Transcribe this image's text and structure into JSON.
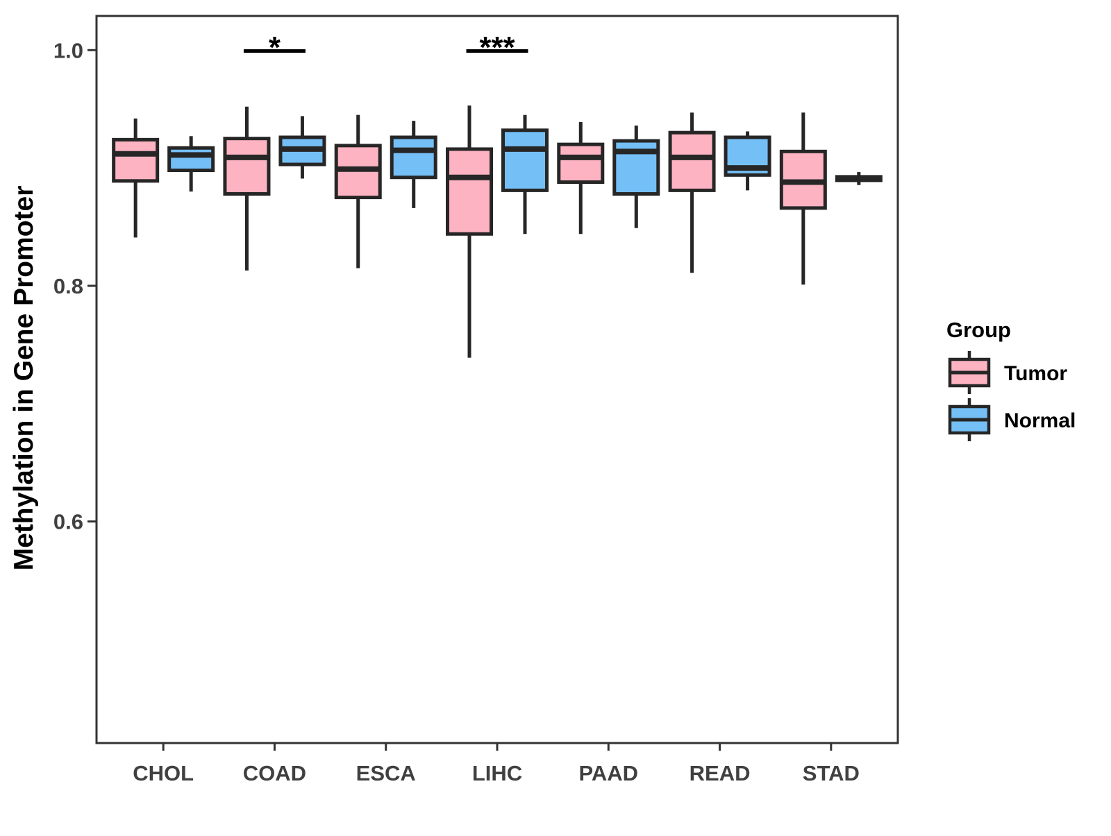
{
  "chart_data": {
    "type": "boxplot",
    "title": "",
    "xlabel": "",
    "ylabel": "Methylation in Gene Promoter",
    "categories": [
      "CHOL",
      "COAD",
      "ESCA",
      "LIHC",
      "PAAD",
      "READ",
      "STAD"
    ],
    "groups": [
      "Tumor",
      "Normal"
    ],
    "group_colors": {
      "Tumor": "#FDB3C2",
      "Normal": "#74BFF5"
    },
    "stroke_color": "#262626",
    "axis_text_color": "#404040",
    "panel_border_color": "#333333",
    "grid": false,
    "legend_position": "right",
    "ylim": [
      0.412,
      1.029
    ],
    "y_tick_values": [
      1.0,
      0.8,
      0.6
    ],
    "y_tick_labels": [
      "1.0",
      "0.8",
      "0.6"
    ],
    "legend": {
      "title": "Group",
      "entries": [
        {
          "label": "Tumor",
          "color": "#FDB3C2"
        },
        {
          "label": "Normal",
          "color": "#74BFF5"
        }
      ]
    },
    "significance": [
      {
        "category": "COAD",
        "label": "*"
      },
      {
        "category": "LIHC",
        "label": "***"
      }
    ],
    "series": [
      {
        "category": "CHOL",
        "group": "Tumor",
        "whisker_low": 0.841,
        "q1": 0.889,
        "median": 0.912,
        "q3": 0.924,
        "whisker_high": 0.942
      },
      {
        "category": "CHOL",
        "group": "Normal",
        "whisker_low": 0.88,
        "q1": 0.898,
        "median": 0.911,
        "q3": 0.917,
        "whisker_high": 0.927
      },
      {
        "category": "COAD",
        "group": "Tumor",
        "whisker_low": 0.813,
        "q1": 0.878,
        "median": 0.909,
        "q3": 0.925,
        "whisker_high": 0.952
      },
      {
        "category": "COAD",
        "group": "Normal",
        "whisker_low": 0.891,
        "q1": 0.903,
        "median": 0.916,
        "q3": 0.926,
        "whisker_high": 0.944
      },
      {
        "category": "ESCA",
        "group": "Tumor",
        "whisker_low": 0.815,
        "q1": 0.875,
        "median": 0.899,
        "q3": 0.919,
        "whisker_high": 0.945
      },
      {
        "category": "ESCA",
        "group": "Normal",
        "whisker_low": 0.866,
        "q1": 0.892,
        "median": 0.915,
        "q3": 0.926,
        "whisker_high": 0.94
      },
      {
        "category": "LIHC",
        "group": "Tumor",
        "whisker_low": 0.739,
        "q1": 0.844,
        "median": 0.892,
        "q3": 0.916,
        "whisker_high": 0.953
      },
      {
        "category": "LIHC",
        "group": "Normal",
        "whisker_low": 0.844,
        "q1": 0.881,
        "median": 0.916,
        "q3": 0.932,
        "whisker_high": 0.945
      },
      {
        "category": "PAAD",
        "group": "Tumor",
        "whisker_low": 0.844,
        "q1": 0.888,
        "median": 0.909,
        "q3": 0.92,
        "whisker_high": 0.939
      },
      {
        "category": "PAAD",
        "group": "Normal",
        "whisker_low": 0.849,
        "q1": 0.878,
        "median": 0.914,
        "q3": 0.923,
        "whisker_high": 0.936
      },
      {
        "category": "READ",
        "group": "Tumor",
        "whisker_low": 0.811,
        "q1": 0.881,
        "median": 0.909,
        "q3": 0.93,
        "whisker_high": 0.947
      },
      {
        "category": "READ",
        "group": "Normal",
        "whisker_low": 0.881,
        "q1": 0.894,
        "median": 0.9,
        "q3": 0.926,
        "whisker_high": 0.931
      },
      {
        "category": "STAD",
        "group": "Tumor",
        "whisker_low": 0.801,
        "q1": 0.866,
        "median": 0.888,
        "q3": 0.914,
        "whisker_high": 0.947
      },
      {
        "category": "STAD",
        "group": "Normal",
        "whisker_low": 0.8855,
        "q1": 0.8895,
        "median": 0.891,
        "q3": 0.8925,
        "whisker_high": 0.8965
      }
    ]
  }
}
